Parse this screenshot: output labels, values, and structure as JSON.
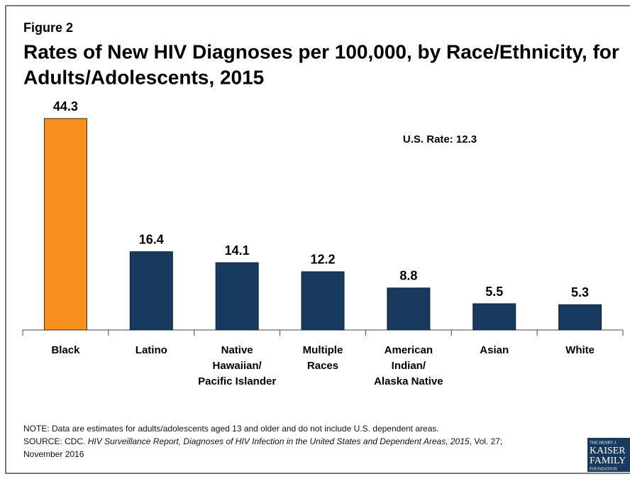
{
  "figure_label": "Figure 2",
  "chart_data": {
    "type": "bar",
    "title": [
      "Rates of New HIV Diagnoses per 100,000, by Race/Ethnicity, for",
      "Adults/Adolescents, 2015"
    ],
    "categories": [
      [
        "Black"
      ],
      [
        "Latino"
      ],
      [
        "Native",
        "Hawaiian/",
        "Pacific Islander"
      ],
      [
        "Multiple",
        "Races"
      ],
      [
        "American",
        "Indian/",
        "Alaska Native"
      ],
      [
        "Asian"
      ],
      [
        "White"
      ]
    ],
    "values": [
      44.3,
      16.4,
      14.1,
      12.2,
      8.8,
      5.5,
      5.3
    ],
    "colors": [
      "#f7901e",
      "#173a5e",
      "#173a5e",
      "#173a5e",
      "#173a5e",
      "#173a5e",
      "#173a5e"
    ],
    "annotation": "U.S. Rate: 12.3"
  },
  "note": "NOTE: Data are estimates for adults/adolescents aged 13 and older and do not include U.S. dependent areas.",
  "source": {
    "prefix": "SOURCE: CDC. ",
    "title": "HIV Surveillance Report, Diagnoses of HIV Infection in the United States and Dependent Areas, 2015",
    "suffix": ", Vol. 27;",
    "end": "November 2016"
  },
  "logo": [
    "THE HENRY J.",
    "KAISER",
    "FAMILY",
    "FOUNDATION"
  ]
}
